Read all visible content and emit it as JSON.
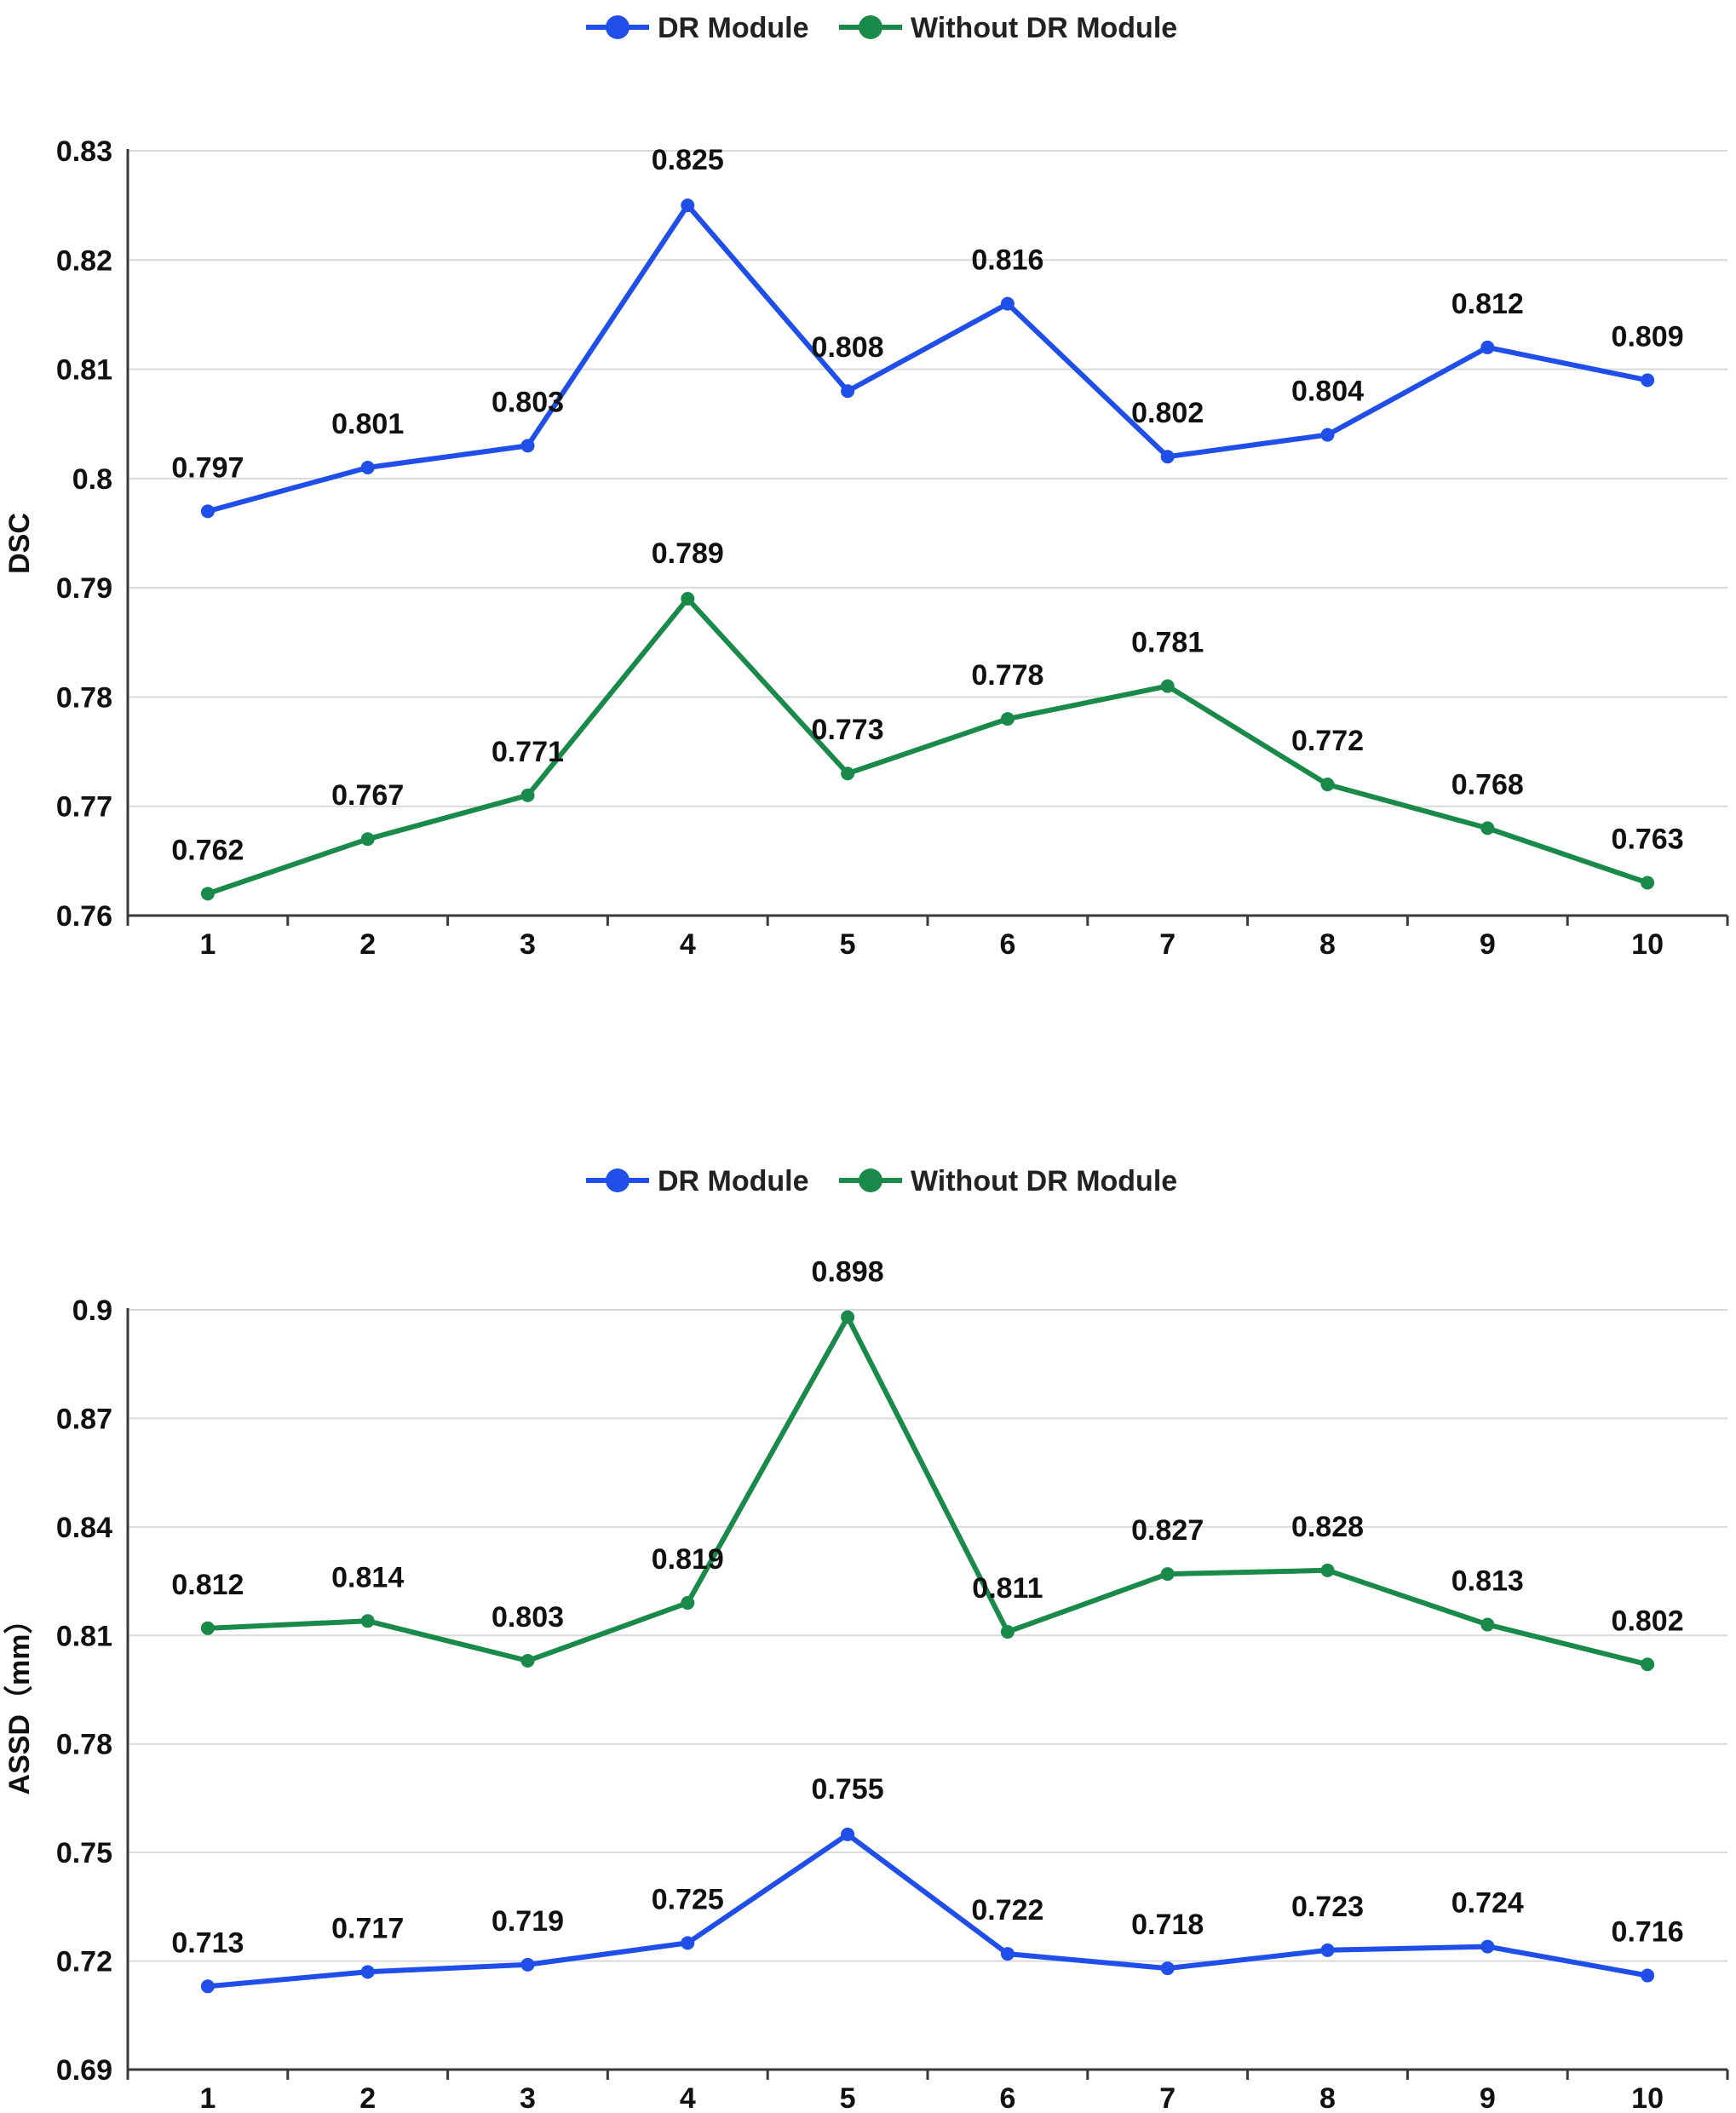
{
  "chart_data": [
    {
      "type": "line",
      "title": "",
      "xlabel": "",
      "ylabel": "DSC",
      "categories": [
        "1",
        "2",
        "3",
        "4",
        "5",
        "6",
        "7",
        "8",
        "9",
        "10"
      ],
      "ylim": [
        0.76,
        0.83
      ],
      "yticks": [
        0.76,
        0.77,
        0.78,
        0.79,
        0.8,
        0.81,
        0.82,
        0.83
      ],
      "ytick_labels": [
        "0.76",
        "0.77",
        "0.78",
        "0.79",
        "0.8",
        "0.81",
        "0.82",
        "0.83"
      ],
      "legend": "top-center",
      "grid": true,
      "series": [
        {
          "name": "DR Module",
          "color": "#1f4fe8",
          "values": [
            0.797,
            0.801,
            0.803,
            0.825,
            0.808,
            0.816,
            0.802,
            0.804,
            0.812,
            0.809
          ],
          "labels": [
            "0.797",
            "0.801",
            "0.803",
            "0.825",
            "0.808",
            "0.816",
            "0.802",
            "0.804",
            "0.812",
            "0.809"
          ]
        },
        {
          "name": "Without DR Module",
          "color": "#1a8a4a",
          "values": [
            0.762,
            0.767,
            0.771,
            0.789,
            0.773,
            0.778,
            0.781,
            0.772,
            0.768,
            0.763
          ],
          "labels": [
            "0.762",
            "0.767",
            "0.771",
            "0.789",
            "0.773",
            "0.778",
            "0.781",
            "0.772",
            "0.768",
            "0.763"
          ]
        }
      ]
    },
    {
      "type": "line",
      "title": "",
      "xlabel": "",
      "ylabel": "ASSD（mm）",
      "categories": [
        "1",
        "2",
        "3",
        "4",
        "5",
        "6",
        "7",
        "8",
        "9",
        "10"
      ],
      "ylim": [
        0.69,
        0.9
      ],
      "yticks": [
        0.69,
        0.72,
        0.75,
        0.78,
        0.81,
        0.84,
        0.87,
        0.9
      ],
      "ytick_labels": [
        "0.69",
        "0.72",
        "0.75",
        "0.78",
        "0.81",
        "0.84",
        "0.87",
        "0.9"
      ],
      "legend": "top-center",
      "grid": true,
      "series": [
        {
          "name": "DR Module",
          "color": "#1f4fe8",
          "values": [
            0.713,
            0.717,
            0.719,
            0.725,
            0.755,
            0.722,
            0.718,
            0.723,
            0.724,
            0.716
          ],
          "labels": [
            "0.713",
            "0.717",
            "0.719",
            "0.725",
            "0.755",
            "0.722",
            "0.718",
            "0.723",
            "0.724",
            "0.716"
          ]
        },
        {
          "name": "Without DR Module",
          "color": "#1a8a4a",
          "values": [
            0.812,
            0.814,
            0.803,
            0.819,
            0.898,
            0.811,
            0.827,
            0.828,
            0.813,
            0.802
          ],
          "labels": [
            "0.812",
            "0.814",
            "0.803",
            "0.819",
            "0.898",
            "0.811",
            "0.827",
            "0.828",
            "0.813",
            "0.802"
          ]
        }
      ]
    }
  ]
}
